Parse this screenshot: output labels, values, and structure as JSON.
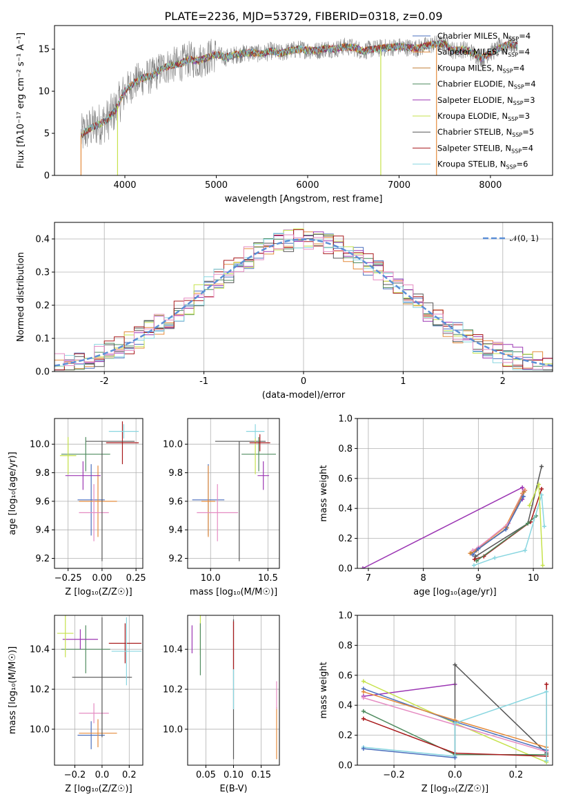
{
  "figure": {
    "title": "PLATE=2236, MJD=53729, FIBERID=0318, z=0.09"
  },
  "palette": {
    "Chabrier MILES": "#4a6fbd",
    "Salpeter MILES": "#e48a3a",
    "Kroupa MILES": "#c2813a",
    "Chabrier ELODIE": "#4f8b5f",
    "Salpeter ELODIE": "#9b35b3",
    "Kroupa ELODIE": "#c6e24b",
    "Chabrier STELIB": "#555555",
    "Salpeter STELIB": "#a8191b",
    "Kroupa STELIB": "#88d6e0",
    "pink": "#e58bc2",
    "data": "#808080",
    "normal": "#5b8fd6"
  },
  "chart_data": [
    {
      "id": "spectrum",
      "type": "line",
      "xlabel": "wavelength [Angstrom, rest frame]",
      "ylabel": "Flux [f$_\\lambda$10$^{-17}$ erg cm$^{-2}$ s$^{-1}$ A$^{-1}$]",
      "ylabel_display": "Flux [fλ10⁻¹⁷ erg cm⁻² s⁻¹ A⁻¹]",
      "xlim": [
        3230,
        8680
      ],
      "ylim": [
        0,
        17.8
      ],
      "xticks": [
        4000,
        5000,
        6000,
        7000,
        8000
      ],
      "yticks": [
        0,
        5,
        10,
        15
      ],
      "grid": false,
      "legend_position": "top-right",
      "legend": [
        {
          "prefix": "Chabrier MILES, N",
          "n": 4,
          "color_key": "Chabrier MILES"
        },
        {
          "prefix": "Salpeter MILES, N",
          "n": 4,
          "color_key": "Salpeter MILES"
        },
        {
          "prefix": "Kroupa MILES, N",
          "n": 4,
          "color_key": "Kroupa MILES"
        },
        {
          "prefix": "Chabrier ELODIE, N",
          "n": 4,
          "color_key": "Chabrier ELODIE"
        },
        {
          "prefix": "Salpeter ELODIE, N",
          "n": 3,
          "color_key": "Salpeter ELODIE"
        },
        {
          "prefix": "Kroupa ELODIE, N",
          "n": 3,
          "color_key": "Kroupa ELODIE"
        },
        {
          "prefix": "Chabrier STELIB, N",
          "n": 5,
          "color_key": "Chabrier STELIB"
        },
        {
          "prefix": "Salpeter STELIB, N",
          "n": 4,
          "color_key": "Salpeter STELIB"
        },
        {
          "prefix": "Kroupa STELIB, N",
          "n": 6,
          "color_key": "Kroupa STELIB"
        }
      ],
      "legend_sub": "SSP",
      "continuum": [
        [
          3520,
          4.7
        ],
        [
          3600,
          5.5
        ],
        [
          3700,
          6.0
        ],
        [
          3800,
          6.5
        ],
        [
          3900,
          7.8
        ],
        [
          4000,
          10.0
        ],
        [
          4100,
          11.0
        ],
        [
          4200,
          11.6
        ],
        [
          4300,
          11.8
        ],
        [
          4400,
          12.7
        ],
        [
          4500,
          13.1
        ],
        [
          4600,
          13.2
        ],
        [
          4700,
          13.8
        ],
        [
          4800,
          13.6
        ],
        [
          4900,
          14.0
        ],
        [
          5000,
          14.4
        ],
        [
          5100,
          14.0
        ],
        [
          5200,
          14.3
        ],
        [
          5300,
          14.5
        ],
        [
          5400,
          14.6
        ],
        [
          5500,
          14.4
        ],
        [
          5600,
          14.8
        ],
        [
          5700,
          14.5
        ],
        [
          5800,
          14.8
        ],
        [
          5900,
          15.0
        ],
        [
          6000,
          14.9
        ],
        [
          6100,
          14.8
        ],
        [
          6200,
          15.1
        ],
        [
          6300,
          15.0
        ],
        [
          6400,
          15.3
        ],
        [
          6500,
          15.2
        ],
        [
          6600,
          14.8
        ],
        [
          6700,
          15.0
        ],
        [
          6800,
          15.1
        ],
        [
          6900,
          15.2
        ],
        [
          7000,
          15.3
        ],
        [
          7100,
          15.2
        ],
        [
          7200,
          15.1
        ],
        [
          7300,
          15.4
        ],
        [
          7400,
          15.6
        ],
        [
          7500,
          15.6
        ],
        [
          7600,
          14.8
        ],
        [
          7700,
          15.0
        ],
        [
          7800,
          14.6
        ],
        [
          7900,
          13.9
        ],
        [
          8000,
          14.6
        ],
        [
          8100,
          15.1
        ],
        [
          8200,
          15.6
        ],
        [
          8300,
          15.4
        ]
      ]
    },
    {
      "id": "residuals",
      "type": "histogram",
      "xlabel": "(data-model)/error",
      "ylabel": "Normed distribution",
      "xlim": [
        -2.5,
        2.5
      ],
      "ylim": [
        0,
        0.45
      ],
      "xticks": [
        -2,
        -1,
        0,
        1,
        2
      ],
      "yticks": [
        0.0,
        0.1,
        0.2,
        0.3,
        0.4
      ],
      "grid": true,
      "bin_width": 0.1,
      "series_colors": [
        "#4a6fbd",
        "#e48a3a",
        "#4f8b5f",
        "#9b35b3",
        "#c6e24b",
        "#555555",
        "#a8191b",
        "#88d6e0",
        "#e58bc2"
      ],
      "legend": {
        "label": "𝒩(0, 1)",
        "position": "top-right"
      }
    },
    {
      "id": "age-vs-Z",
      "type": "errorbar",
      "xlabel": "Z [log₁₀(Z/Z☉)]",
      "ylabel": "age  [log₁₀(age/yr)]",
      "xlim": [
        -0.35,
        0.3
      ],
      "ylim": [
        9.13,
        10.18
      ],
      "xticks": [
        -0.25,
        0.0,
        0.25
      ],
      "xtick_labels": [
        "−0.25",
        "0.00",
        "0.25"
      ],
      "yticks": [
        9.2,
        9.4,
        9.6,
        9.8,
        10.0
      ],
      "yticks_labels": [
        "9.2",
        "9.4",
        "9.6",
        "9.8",
        "10.0"
      ],
      "grid": true,
      "points": [
        {
          "c": "Chabrier MILES",
          "x": -0.08,
          "xerr": 0.1,
          "y": 9.61,
          "yerr": 0.25
        },
        {
          "c": "Salpeter MILES",
          "x": -0.03,
          "xerr": 0.14,
          "y": 9.6,
          "yerr": 0.25
        },
        {
          "c": "pink",
          "x": -0.06,
          "xerr": 0.11,
          "y": 9.52,
          "yerr": 0.2
        },
        {
          "c": "Chabrier ELODIE",
          "x": -0.12,
          "xerr": 0.18,
          "y": 9.93,
          "yerr": 0.12
        },
        {
          "c": "Salpeter ELODIE",
          "x": -0.14,
          "xerr": 0.13,
          "y": 9.78,
          "yerr": 0.1
        },
        {
          "c": "Kroupa ELODIE",
          "x": -0.25,
          "xerr": 0.06,
          "y": 9.92,
          "yerr": 0.13
        },
        {
          "c": "Chabrier STELIB",
          "x": 0.0,
          "xerr": 0.0,
          "y": 9.6,
          "yerr": 0.42
        },
        {
          "c": "Salpeter STELIB",
          "x": 0.15,
          "xerr": 0.12,
          "y": 10.01,
          "yerr": 0.15
        },
        {
          "c": "Kroupa STELIB",
          "x": 0.16,
          "xerr": 0.11,
          "y": 10.09,
          "yerr": 0.05
        },
        {
          "c": "Chabrier STELIB",
          "x": 0.06,
          "xerr": 0.18,
          "y": 10.02,
          "yerr": 0.0
        }
      ]
    },
    {
      "id": "age-vs-mass",
      "type": "errorbar",
      "xlabel": "mass [log₁₀(M/M☉)]",
      "ylabel": "",
      "xlim": [
        9.8,
        10.6
      ],
      "ylim": [
        9.13,
        10.18
      ],
      "xticks": [
        10.0,
        10.5
      ],
      "xtick_labels": [
        "10.0",
        "10.5"
      ],
      "yticks": [
        9.2,
        9.4,
        9.6,
        9.8,
        10.0
      ],
      "yticks_labels": [
        "9.2",
        "9.4",
        "9.6",
        "9.8",
        "10.0"
      ],
      "grid": true,
      "points": [
        {
          "c": "Chabrier MILES",
          "x": 9.98,
          "xerr": 0.14,
          "y": 9.61,
          "yerr": 0.25
        },
        {
          "c": "Salpeter MILES",
          "x": 9.98,
          "xerr": 0.06,
          "y": 9.6,
          "yerr": 0.25
        },
        {
          "c": "pink",
          "x": 10.06,
          "xerr": 0.18,
          "y": 9.52,
          "yerr": 0.2
        },
        {
          "c": "Chabrier STELIB",
          "x": 10.25,
          "xerr": 0.0,
          "y": 9.6,
          "yerr": 0.42
        },
        {
          "c": "Chabrier STELIB",
          "x": 10.26,
          "xerr": 0.22,
          "y": 10.02,
          "yerr": 0.0
        },
        {
          "c": "Chabrier ELODIE",
          "x": 10.42,
          "xerr": 0.15,
          "y": 9.93,
          "yerr": 0.12
        },
        {
          "c": "Salpeter ELODIE",
          "x": 10.46,
          "xerr": 0.05,
          "y": 9.78,
          "yerr": 0.1
        },
        {
          "c": "Kroupa ELODIE",
          "x": 10.39,
          "xerr": 0.0,
          "y": 9.92,
          "yerr": 0.13
        },
        {
          "c": "Salpeter STELIB",
          "x": 10.43,
          "xerr": 0.09,
          "y": 10.01,
          "yerr": 0.06
        },
        {
          "c": "Kroupa STELIB",
          "x": 10.39,
          "xerr": 0.08,
          "y": 10.09,
          "yerr": 0.05
        }
      ]
    },
    {
      "id": "weight-vs-age",
      "type": "line",
      "xlabel": "age  [log₁₀(age/yr)]",
      "ylabel": "mass weight",
      "xlim": [
        6.8,
        10.35
      ],
      "ylim": [
        0,
        1.0
      ],
      "xticks": [
        7,
        8,
        9,
        10
      ],
      "yticks": [
        0.0,
        0.2,
        0.4,
        0.6,
        0.8,
        1.0
      ],
      "grid": true,
      "series": [
        {
          "c": "Salpeter ELODIE",
          "x": [
            6.9,
            9.8,
            9.82,
            9.8
          ],
          "y": [
            0.0,
            0.54,
            0.48,
            0.46
          ]
        },
        {
          "c": "Salpeter MILES",
          "x": [
            8.85,
            8.95,
            9.5,
            9.8,
            9.85
          ],
          "y": [
            0.1,
            0.12,
            0.28,
            0.5,
            0.52
          ]
        },
        {
          "c": "pink",
          "x": [
            8.9,
            9.0,
            9.55,
            9.83
          ],
          "y": [
            0.12,
            0.14,
            0.3,
            0.52
          ]
        },
        {
          "c": "Kroupa MILES",
          "x": [
            8.87,
            8.97,
            9.52,
            9.83
          ],
          "y": [
            0.1,
            0.12,
            0.27,
            0.51
          ]
        },
        {
          "c": "Chabrier MILES",
          "x": [
            8.9,
            9.0,
            9.5,
            9.82
          ],
          "y": [
            0.09,
            0.13,
            0.26,
            0.48
          ]
        },
        {
          "c": "Chabrier STELIB",
          "x": [
            8.95,
            9.9,
            10.15
          ],
          "y": [
            0.08,
            0.3,
            0.68
          ]
        },
        {
          "c": "Salpeter STELIB",
          "x": [
            8.93,
            9.1,
            9.95,
            10.15
          ],
          "y": [
            0.06,
            0.08,
            0.31,
            0.53
          ]
        },
        {
          "c": "Chabrier ELODIE",
          "x": [
            8.97,
            9.9,
            10.05
          ],
          "y": [
            0.05,
            0.3,
            0.35
          ]
        },
        {
          "c": "Kroupa STELIB",
          "x": [
            8.92,
            9.3,
            9.85,
            10.15,
            10.2
          ],
          "y": [
            0.02,
            0.07,
            0.12,
            0.49,
            0.28
          ]
        },
        {
          "c": "Kroupa ELODIE",
          "x": [
            9.93,
            10.1,
            10.17
          ],
          "y": [
            0.42,
            0.56,
            0.02
          ]
        }
      ]
    },
    {
      "id": "mass-vs-Z",
      "type": "errorbar",
      "xlabel": "Z [log₁₀(Z/Z☉)]",
      "ylabel": "mass [log₁₀(M/M☉)]",
      "xlim": [
        -0.35,
        0.3
      ],
      "ylim": [
        9.82,
        10.57
      ],
      "xticks": [
        -0.2,
        0.0,
        0.2
      ],
      "xtick_labels": [
        "−0.2",
        "0.0",
        "0.2"
      ],
      "yticks": [
        10.0,
        10.2,
        10.4
      ],
      "yticks_labels": [
        "10.0",
        "10.2",
        "10.4"
      ],
      "grid": true,
      "points": [
        {
          "c": "Chabrier MILES",
          "x": -0.08,
          "xerr": 0.1,
          "y": 9.97,
          "yerr": 0.07
        },
        {
          "c": "Salpeter MILES",
          "x": -0.03,
          "xerr": 0.14,
          "y": 9.98,
          "yerr": 0.07
        },
        {
          "c": "pink",
          "x": -0.06,
          "xerr": 0.11,
          "y": 10.08,
          "yerr": 0.05
        },
        {
          "c": "Chabrier STELIB",
          "x": 0.0,
          "xerr": 0.22,
          "y": 10.26,
          "yerr": 0.3
        },
        {
          "c": "Chabrier ELODIE",
          "x": -0.12,
          "xerr": 0.18,
          "y": 10.4,
          "yerr": 0.12
        },
        {
          "c": "Salpeter ELODIE",
          "x": -0.16,
          "xerr": 0.13,
          "y": 10.45,
          "yerr": 0.05
        },
        {
          "c": "Kroupa ELODIE",
          "x": -0.27,
          "xerr": 0.06,
          "y": 10.48,
          "yerr": 0.12
        },
        {
          "c": "Salpeter STELIB",
          "x": 0.17,
          "xerr": 0.12,
          "y": 10.43,
          "yerr": 0.1
        },
        {
          "c": "Kroupa STELIB",
          "x": 0.18,
          "xerr": 0.11,
          "y": 10.39,
          "yerr": 0.17
        }
      ]
    },
    {
      "id": "mass-vs-EBV",
      "type": "errorbar",
      "xlabel": "E(B-V)",
      "ylabel": "",
      "xlim": [
        0.017,
        0.183
      ],
      "ylim": [
        9.82,
        10.57
      ],
      "xticks": [
        0.05,
        0.1,
        0.15
      ],
      "xtick_labels": [
        "0.05",
        "0.10",
        "0.15"
      ],
      "yticks": [
        10.0,
        10.2,
        10.4
      ],
      "yticks_labels": [
        "10.0",
        "10.2",
        "10.4"
      ],
      "grid": true,
      "points": [
        {
          "c": "Salpeter ELODIE",
          "x": 0.025,
          "xerr": 0,
          "y": 10.45,
          "yerr": 0.07
        },
        {
          "c": "Kroupa ELODIE",
          "x": 0.04,
          "xerr": 0,
          "y": 10.47,
          "yerr": 0.1
        },
        {
          "c": "Chabrier ELODIE",
          "x": 0.04,
          "xerr": 0,
          "y": 10.4,
          "yerr": 0.13
        },
        {
          "c": "Chabrier STELIB",
          "x": 0.1,
          "xerr": 0,
          "y": 10.2,
          "yerr": 0.35
        },
        {
          "c": "Salpeter STELIB",
          "x": 0.1,
          "xerr": 0,
          "y": 10.42,
          "yerr": 0.12
        },
        {
          "c": "Kroupa STELIB",
          "x": 0.1,
          "xerr": 0,
          "y": 10.2,
          "yerr": 0.1
        },
        {
          "c": "Salpeter MILES",
          "x": 0.178,
          "xerr": 0,
          "y": 9.98,
          "yerr": 0.13
        },
        {
          "c": "pink",
          "x": 0.178,
          "xerr": 0,
          "y": 10.17,
          "yerr": 0.07
        }
      ]
    },
    {
      "id": "weight-vs-Z",
      "type": "line",
      "xlabel": "Z [log₁₀(Z/Z☉)]",
      "ylabel": "mass weight",
      "xlim": [
        -0.32,
        0.32
      ],
      "ylim": [
        0,
        1.0
      ],
      "xticks": [
        -0.2,
        0.0,
        0.2
      ],
      "xtick_labels": [
        "−0.2",
        "0.0",
        "0.2"
      ],
      "yticks": [
        0.0,
        0.2,
        0.4,
        0.6,
        0.8,
        1.0
      ],
      "grid": true,
      "series": [
        {
          "c": "Salpeter ELODIE",
          "x": [
            -0.3,
            0.0
          ],
          "y": [
            0.46,
            0.54
          ]
        },
        {
          "c": "Chabrier STELIB",
          "x": [
            0.0,
            0.0,
            0.3,
            0.3
          ],
          "y": [
            0.08,
            0.67,
            0.08,
            0.1
          ]
        },
        {
          "c": "Kroupa ELODIE",
          "x": [
            -0.3,
            0.0,
            0.3
          ],
          "y": [
            0.56,
            0.28,
            0.02
          ]
        },
        {
          "c": "Chabrier MILES",
          "x": [
            -0.3,
            0.0,
            0.3
          ],
          "y": [
            0.51,
            0.29,
            0.1
          ]
        },
        {
          "c": "Salpeter MILES",
          "x": [
            -0.3,
            0.0,
            0.3
          ],
          "y": [
            0.49,
            0.3,
            0.12
          ]
        },
        {
          "c": "pink",
          "x": [
            -0.3,
            0.0,
            0.3
          ],
          "y": [
            0.45,
            0.27,
            0.09
          ]
        },
        {
          "c": "Chabrier ELODIE",
          "x": [
            -0.3,
            0.0,
            0.3
          ],
          "y": [
            0.36,
            0.07,
            0.07
          ]
        },
        {
          "c": "Salpeter STELIB",
          "x": [
            -0.3,
            0.0,
            0.3,
            0.3
          ],
          "y": [
            0.31,
            0.08,
            0.06,
            0.54
          ]
        },
        {
          "c": "Kroupa STELIB",
          "x": [
            -0.3,
            0.0,
            0.0,
            0.3,
            0.3
          ],
          "y": [
            0.12,
            0.06,
            0.28,
            0.49,
            0.03
          ]
        },
        {
          "c": "Chabrier MILES",
          "x": [
            -0.3,
            0.0
          ],
          "y": [
            0.11,
            0.05
          ]
        }
      ]
    }
  ]
}
